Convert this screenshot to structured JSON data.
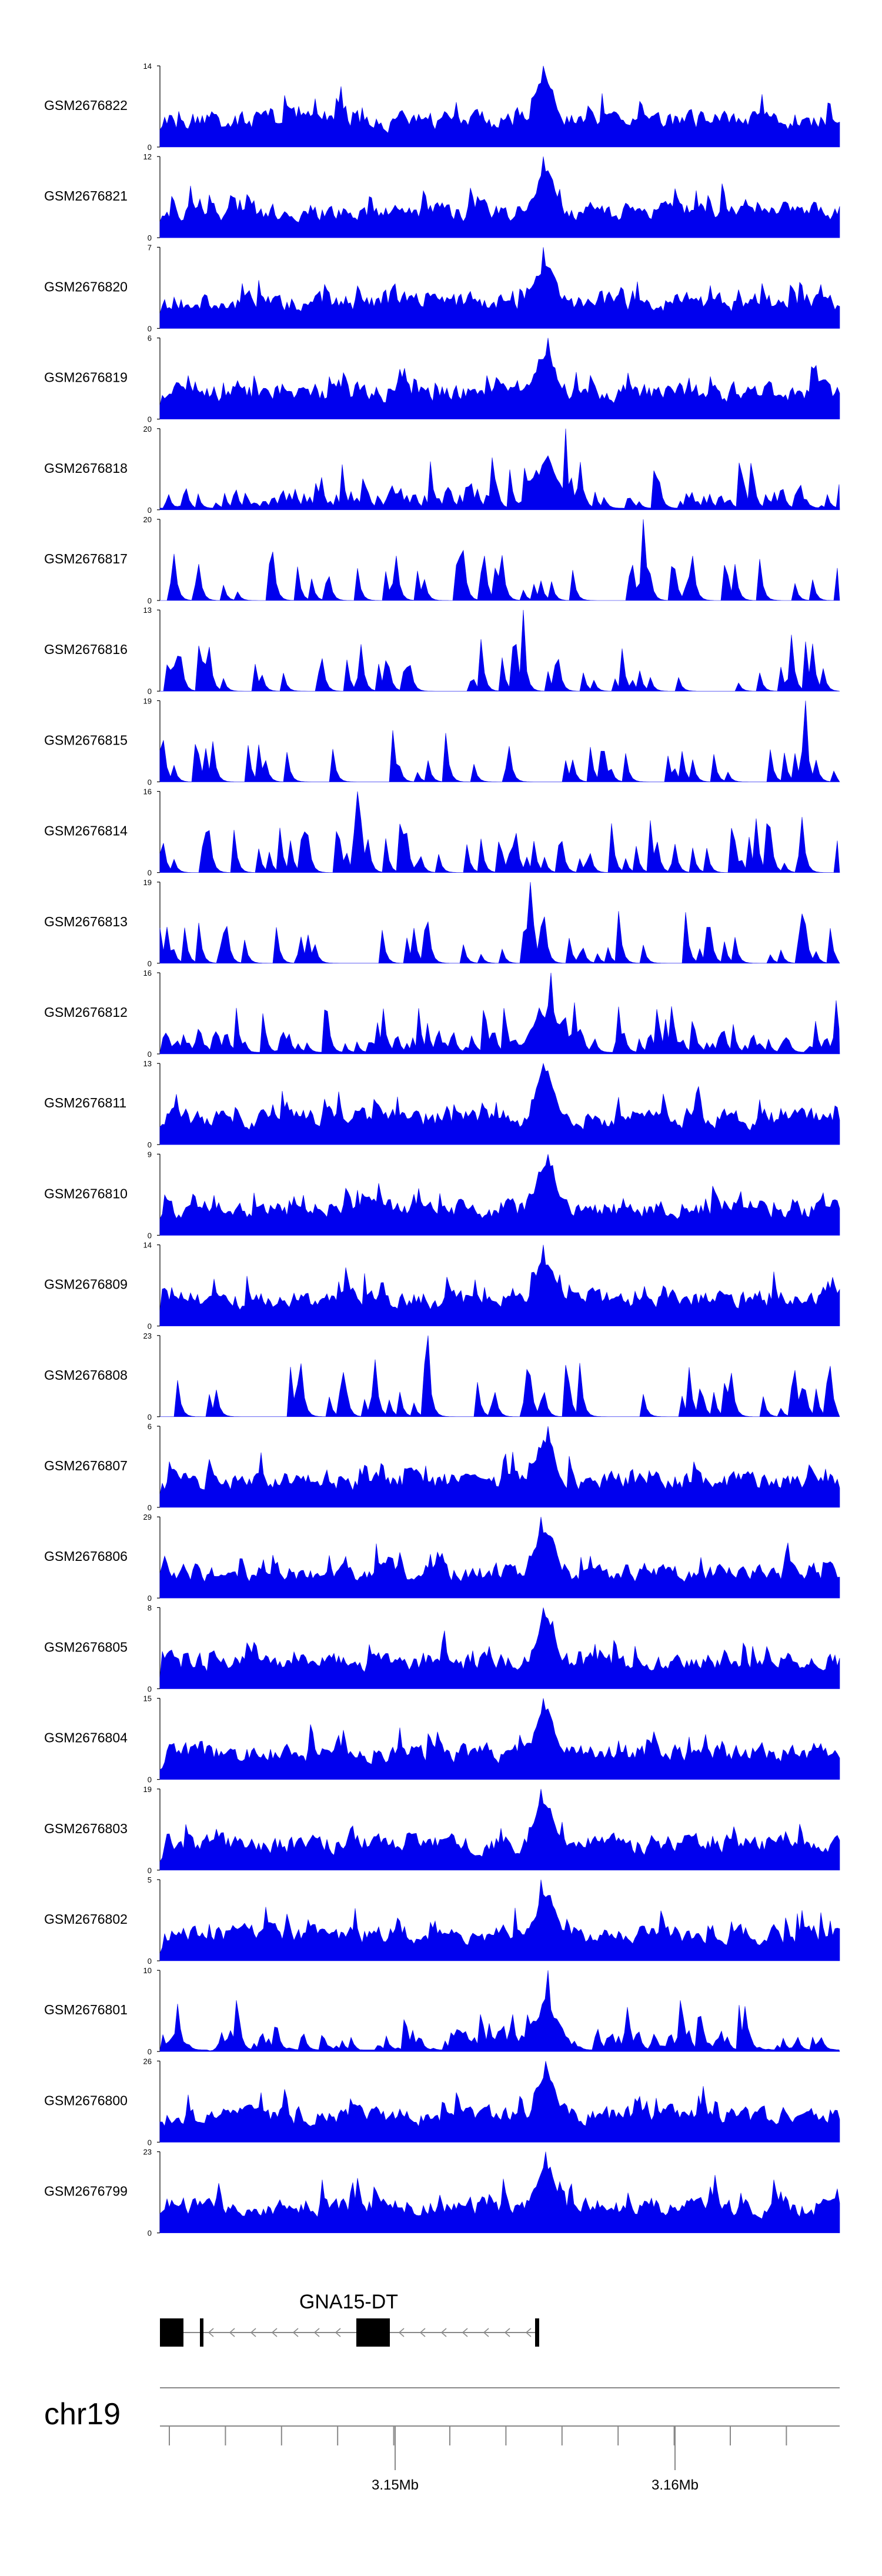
{
  "chart_data": {
    "type": "area",
    "chromosome": "chr19",
    "gene": {
      "name": "GNA15-DT",
      "strand": "-"
    },
    "axis": {
      "ticks": [
        "3.15Mb",
        "3.16Mb"
      ],
      "minor_tick_count": 12
    },
    "colors": {
      "signal": "#0000ee",
      "axis": "#888888",
      "gene": "#000000"
    },
    "series": [
      {
        "name": "GSM2676822",
        "ymax": 14,
        "ymin": 0,
        "fill": "dense",
        "seed": 22
      },
      {
        "name": "GSM2676821",
        "ymax": 12,
        "ymin": 0,
        "fill": "dense",
        "seed": 21
      },
      {
        "name": "GSM2676820",
        "ymax": 7,
        "ymin": 0,
        "fill": "dense",
        "seed": 20
      },
      {
        "name": "GSM2676819",
        "ymax": 6,
        "ymin": 0,
        "fill": "dense",
        "seed": 19
      },
      {
        "name": "GSM2676818",
        "ymax": 20,
        "ymin": 0,
        "fill": "medium",
        "seed": 18
      },
      {
        "name": "GSM2676817",
        "ymax": 20,
        "ymin": 0,
        "fill": "sparse",
        "seed": 17
      },
      {
        "name": "GSM2676816",
        "ymax": 13,
        "ymin": 0,
        "fill": "sparse",
        "seed": 16
      },
      {
        "name": "GSM2676815",
        "ymax": 19,
        "ymin": 0,
        "fill": "sparse",
        "seed": 15
      },
      {
        "name": "GSM2676814",
        "ymax": 16,
        "ymin": 0,
        "fill": "sparse",
        "seed": 14
      },
      {
        "name": "GSM2676813",
        "ymax": 19,
        "ymin": 0,
        "fill": "sparse",
        "seed": 13
      },
      {
        "name": "GSM2676812",
        "ymax": 16,
        "ymin": 0,
        "fill": "medium",
        "seed": 12
      },
      {
        "name": "GSM2676811",
        "ymax": 13,
        "ymin": 0,
        "fill": "dense",
        "seed": 11
      },
      {
        "name": "GSM2676810",
        "ymax": 9,
        "ymin": 0,
        "fill": "dense",
        "seed": 10
      },
      {
        "name": "GSM2676809",
        "ymax": 14,
        "ymin": 0,
        "fill": "dense",
        "seed": 9
      },
      {
        "name": "GSM2676808",
        "ymax": 23,
        "ymin": 0,
        "fill": "sparse",
        "seed": 8
      },
      {
        "name": "GSM2676807",
        "ymax": 6,
        "ymin": 0,
        "fill": "dense",
        "seed": 7
      },
      {
        "name": "GSM2676806",
        "ymax": 29,
        "ymin": 0,
        "fill": "dense",
        "seed": 6
      },
      {
        "name": "GSM2676805",
        "ymax": 8,
        "ymin": 0,
        "fill": "dense",
        "seed": 5
      },
      {
        "name": "GSM2676804",
        "ymax": 15,
        "ymin": 0,
        "fill": "dense",
        "seed": 4
      },
      {
        "name": "GSM2676803",
        "ymax": 19,
        "ymin": 0,
        "fill": "dense",
        "seed": 3
      },
      {
        "name": "GSM2676802",
        "ymax": 5,
        "ymin": 0,
        "fill": "dense",
        "seed": 2
      },
      {
        "name": "GSM2676801",
        "ymax": 10,
        "ymin": 0,
        "fill": "medium",
        "seed": 1
      },
      {
        "name": "GSM2676800",
        "ymax": 26,
        "ymin": 0,
        "fill": "dense",
        "seed": 100
      },
      {
        "name": "GSM2676799",
        "ymax": 23,
        "ymin": 0,
        "fill": "dense",
        "seed": 99
      }
    ]
  }
}
